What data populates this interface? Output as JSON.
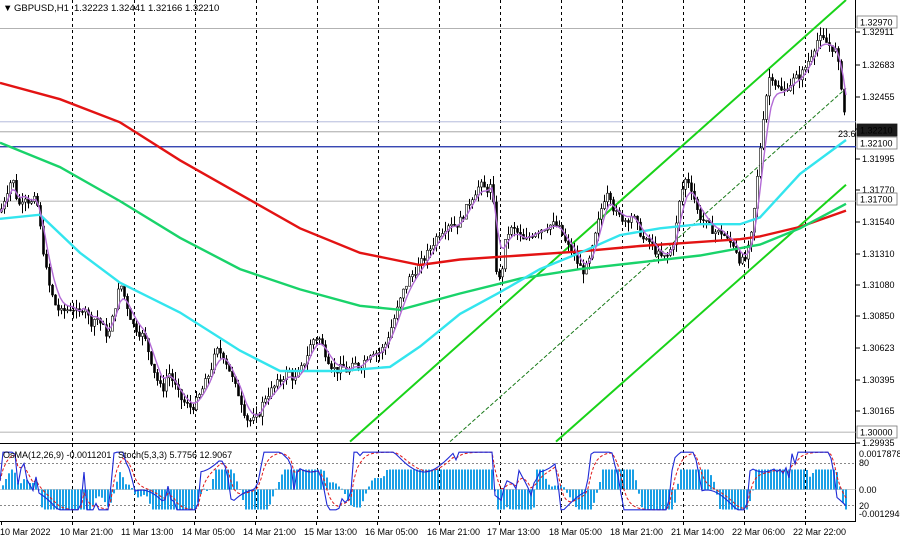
{
  "header": {
    "arrow": "▼",
    "symbol": "GBPUSD,H1",
    "ohlc": "1.32223 1.32441 1.32166 1.32210"
  },
  "price_axis": {
    "ticks": [
      "1.32911",
      "1.32683",
      "1.32455",
      "1.32221",
      "1.31995",
      "1.31770",
      "1.31540",
      "1.31310",
      "1.31080",
      "1.30850",
      "1.30623",
      "1.30395",
      "1.30165",
      "1.29935"
    ],
    "tags": [
      {
        "text": "1.32970",
        "style": "outline"
      },
      {
        "text": "1.32210",
        "style": "dark"
      },
      {
        "text": "1.32100",
        "style": "outline"
      },
      {
        "text": "1.31700",
        "style": "outline"
      },
      {
        "text": "1.30000",
        "style": "outline"
      }
    ],
    "fib_label": "23.6"
  },
  "indicator": {
    "osma_label": "OsMA(12,26,9) -0.0011201",
    "stoch_label": "Stoch(5,3,3) 5.7756 12.9067",
    "ticks": [
      "0.0017878",
      "80",
      "0.00",
      "20",
      "-0.0012940"
    ]
  },
  "time_axis": {
    "labels": [
      "10 Mar 2022",
      "10 Mar 21:00",
      "11 Mar 13:00",
      "14 Mar 05:00",
      "14 Mar 21:00",
      "15 Mar 13:00",
      "16 Mar 05:00",
      "16 Mar 21:00",
      "17 Mar 13:00",
      "18 Mar 05:00",
      "18 Mar 21:00",
      "21 Mar 14:00",
      "22 Mar 06:00",
      "22 Mar 22:00"
    ]
  },
  "colors": {
    "candle": "#000000",
    "ema_fast": "#b36bd6",
    "ema_50": "#33e5ee",
    "ema_144": "#19d36a",
    "ema_200": "#e31313",
    "channel": "#19d319",
    "level_line": "#1c2ea8",
    "histogram": "#1aa0e6",
    "stoch_main": "#1f2ad6",
    "stoch_signal": "#e01a1a"
  },
  "chart_data": {
    "type": "candlestick",
    "symbol": "GBPUSD",
    "timeframe": "H1",
    "last_ohlc": {
      "open": 1.32223,
      "high": 1.32441,
      "low": 1.32166,
      "close": 1.3221
    },
    "ylim": [
      1.2992,
      1.3318
    ],
    "key_levels": [
      1.3297,
      1.3221,
      1.321,
      1.317,
      1.3
    ],
    "close_path": [
      [
        0,
        1.3162
      ],
      [
        6,
        1.3176
      ],
      [
        12,
        1.3188
      ],
      [
        18,
        1.3166
      ],
      [
        24,
        1.3175
      ],
      [
        30,
        1.3168
      ],
      [
        36,
        1.3172
      ],
      [
        40,
        1.315
      ],
      [
        44,
        1.3128
      ],
      [
        48,
        1.311
      ],
      [
        54,
        1.3095
      ],
      [
        60,
        1.3088
      ],
      [
        66,
        1.309
      ],
      [
        72,
        1.3092
      ],
      [
        78,
        1.3086
      ],
      [
        84,
        1.3094
      ],
      [
        90,
        1.308
      ],
      [
        96,
        1.3085
      ],
      [
        102,
        1.3078
      ],
      [
        108,
        1.307
      ],
      [
        114,
        1.309
      ],
      [
        120,
        1.311
      ],
      [
        126,
        1.3095
      ],
      [
        132,
        1.308
      ],
      [
        138,
        1.3074
      ],
      [
        144,
        1.307
      ],
      [
        150,
        1.3055
      ],
      [
        156,
        1.304
      ],
      [
        162,
        1.303
      ],
      [
        168,
        1.3045
      ],
      [
        174,
        1.3035
      ],
      [
        180,
        1.3025
      ],
      [
        186,
        1.302
      ],
      [
        192,
        1.3018
      ],
      [
        198,
        1.3025
      ],
      [
        204,
        1.3035
      ],
      [
        210,
        1.3045
      ],
      [
        216,
        1.306
      ],
      [
        222,
        1.3058
      ],
      [
        228,
        1.3048
      ],
      [
        234,
        1.3035
      ],
      [
        240,
        1.3025
      ],
      [
        246,
        1.301
      ],
      [
        252,
        1.3008
      ],
      [
        258,
        1.3012
      ],
      [
        264,
        1.3025
      ],
      [
        270,
        1.303
      ],
      [
        276,
        1.3035
      ],
      [
        282,
        1.304
      ],
      [
        288,
        1.3045
      ],
      [
        294,
        1.3038
      ],
      [
        300,
        1.3045
      ],
      [
        306,
        1.3055
      ],
      [
        312,
        1.3068
      ],
      [
        318,
        1.307
      ],
      [
        324,
        1.306
      ],
      [
        330,
        1.305
      ],
      [
        336,
        1.3045
      ],
      [
        342,
        1.3048
      ],
      [
        348,
        1.3044
      ],
      [
        354,
        1.305
      ],
      [
        360,
        1.3048
      ],
      [
        366,
        1.3055
      ],
      [
        372,
        1.306
      ],
      [
        378,
        1.3058
      ],
      [
        384,
        1.3063
      ],
      [
        390,
        1.3075
      ],
      [
        396,
        1.3088
      ],
      [
        402,
        1.3102
      ],
      [
        408,
        1.3112
      ],
      [
        414,
        1.3118
      ],
      [
        420,
        1.3124
      ],
      [
        426,
        1.313
      ],
      [
        432,
        1.3138
      ],
      [
        438,
        1.3146
      ],
      [
        444,
        1.315
      ],
      [
        450,
        1.3155
      ],
      [
        456,
        1.3152
      ],
      [
        462,
        1.3158
      ],
      [
        468,
        1.3168
      ],
      [
        474,
        1.3176
      ],
      [
        480,
        1.3182
      ],
      [
        486,
        1.3178
      ],
      [
        492,
        1.3182
      ],
      [
        496,
        1.312
      ],
      [
        500,
        1.311
      ],
      [
        506,
        1.3145
      ],
      [
        512,
        1.315
      ],
      [
        518,
        1.3146
      ],
      [
        524,
        1.314
      ],
      [
        530,
        1.3145
      ],
      [
        536,
        1.3148
      ],
      [
        542,
        1.315
      ],
      [
        548,
        1.3152
      ],
      [
        554,
        1.3153
      ],
      [
        560,
        1.3149
      ],
      [
        566,
        1.3138
      ],
      [
        572,
        1.3133
      ],
      [
        578,
        1.3123
      ],
      [
        584,
        1.3118
      ],
      [
        590,
        1.3128
      ],
      [
        596,
        1.3148
      ],
      [
        602,
        1.3168
      ],
      [
        608,
        1.318
      ],
      [
        614,
        1.3162
      ],
      [
        620,
        1.3158
      ],
      [
        626,
        1.3156
      ],
      [
        632,
        1.316
      ],
      [
        638,
        1.315
      ],
      [
        644,
        1.314
      ],
      [
        650,
        1.314
      ],
      [
        656,
        1.3132
      ],
      [
        662,
        1.3128
      ],
      [
        668,
        1.313
      ],
      [
        674,
        1.3142
      ],
      [
        680,
        1.3174
      ],
      [
        686,
        1.3188
      ],
      [
        692,
        1.3178
      ],
      [
        698,
        1.316
      ],
      [
        704,
        1.3155
      ],
      [
        710,
        1.315
      ],
      [
        716,
        1.3147
      ],
      [
        722,
        1.3147
      ],
      [
        728,
        1.314
      ],
      [
        734,
        1.3138
      ],
      [
        740,
        1.3125
      ],
      [
        746,
        1.3128
      ],
      [
        752,
        1.3148
      ],
      [
        758,
        1.3195
      ],
      [
        764,
        1.324
      ],
      [
        770,
        1.3265
      ],
      [
        776,
        1.3255
      ],
      [
        782,
        1.325
      ],
      [
        788,
        1.3255
      ],
      [
        794,
        1.326
      ],
      [
        800,
        1.3262
      ],
      [
        806,
        1.327
      ],
      [
        812,
        1.328
      ],
      [
        818,
        1.329
      ],
      [
        824,
        1.3288
      ],
      [
        830,
        1.3284
      ],
      [
        836,
        1.328
      ],
      [
        842,
        1.325
      ],
      [
        846,
        1.3221
      ]
    ],
    "ema_200": [
      [
        0,
        1.3257
      ],
      [
        60,
        1.3245
      ],
      [
        120,
        1.3228
      ],
      [
        180,
        1.32
      ],
      [
        240,
        1.3175
      ],
      [
        300,
        1.315
      ],
      [
        360,
        1.3132
      ],
      [
        420,
        1.3123
      ],
      [
        460,
        1.3127
      ],
      [
        520,
        1.313
      ],
      [
        580,
        1.3133
      ],
      [
        640,
        1.3137
      ],
      [
        700,
        1.314
      ],
      [
        740,
        1.3142
      ],
      [
        760,
        1.3144
      ],
      [
        800,
        1.3151
      ],
      [
        846,
        1.3163
      ]
    ],
    "ema_144": [
      [
        0,
        1.3213
      ],
      [
        60,
        1.3195
      ],
      [
        120,
        1.317
      ],
      [
        180,
        1.3143
      ],
      [
        240,
        1.312
      ],
      [
        300,
        1.3105
      ],
      [
        360,
        1.3093
      ],
      [
        400,
        1.309
      ],
      [
        460,
        1.3102
      ],
      [
        520,
        1.3113
      ],
      [
        580,
        1.312
      ],
      [
        640,
        1.3125
      ],
      [
        700,
        1.313
      ],
      [
        760,
        1.3138
      ],
      [
        800,
        1.315
      ],
      [
        846,
        1.3168
      ]
    ],
    "ema_50": [
      [
        0,
        1.3157
      ],
      [
        40,
        1.316
      ],
      [
        80,
        1.3132
      ],
      [
        120,
        1.311
      ],
      [
        180,
        1.3088
      ],
      [
        240,
        1.306
      ],
      [
        280,
        1.3045
      ],
      [
        340,
        1.3045
      ],
      [
        390,
        1.3048
      ],
      [
        420,
        1.3063
      ],
      [
        460,
        1.3087
      ],
      [
        500,
        1.3103
      ],
      [
        540,
        1.312
      ],
      [
        580,
        1.3132
      ],
      [
        620,
        1.3145
      ],
      [
        660,
        1.315
      ],
      [
        700,
        1.3153
      ],
      [
        740,
        1.3153
      ],
      [
        760,
        1.3158
      ],
      [
        800,
        1.319
      ],
      [
        846,
        1.3215
      ]
    ],
    "channel_lines": [
      {
        "from": [
          350,
          1.2993
        ],
        "to": [
          846,
          1.3318
        ]
      },
      {
        "from": [
          556,
          1.2993
        ],
        "to": [
          846,
          1.3182
        ]
      },
      {
        "from": [
          450,
          1.2993
        ],
        "to": [
          846,
          1.3253
        ]
      }
    ]
  }
}
